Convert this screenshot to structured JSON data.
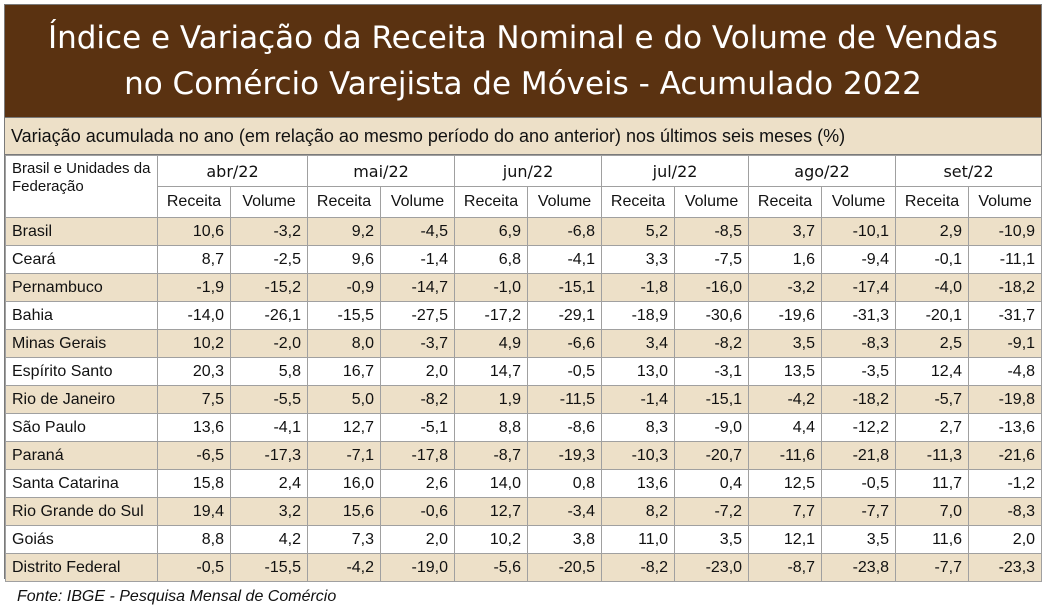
{
  "title": {
    "line1": "Índice e Variação da Receita Nominal e do Volume de Vendas",
    "line2": "no Comércio Varejista de Móveis - Acumulado 2022"
  },
  "subtitle": "Variação acumulada no ano (em relação ao mesmo período do ano anterior) nos últimos seis meses (%)",
  "table": {
    "corner_label": "Brasil e Unidades da Federação",
    "months": [
      "abr/22",
      "mai/22",
      "jun/22",
      "jul/22",
      "ago/22",
      "set/22"
    ],
    "sub_headers": [
      "Receita",
      "Volume"
    ],
    "rows": [
      {
        "name": "Brasil",
        "values": [
          "10,6",
          "-3,2",
          "9,2",
          "-4,5",
          "6,9",
          "-6,8",
          "5,2",
          "-8,5",
          "3,7",
          "-10,1",
          "2,9",
          "-10,9"
        ]
      },
      {
        "name": "Ceará",
        "values": [
          "8,7",
          "-2,5",
          "9,6",
          "-1,4",
          "6,8",
          "-4,1",
          "3,3",
          "-7,5",
          "1,6",
          "-9,4",
          "-0,1",
          "-11,1"
        ]
      },
      {
        "name": "Pernambuco",
        "values": [
          "-1,9",
          "-15,2",
          "-0,9",
          "-14,7",
          "-1,0",
          "-15,1",
          "-1,8",
          "-16,0",
          "-3,2",
          "-17,4",
          "-4,0",
          "-18,2"
        ]
      },
      {
        "name": "Bahia",
        "values": [
          "-14,0",
          "-26,1",
          "-15,5",
          "-27,5",
          "-17,2",
          "-29,1",
          "-18,9",
          "-30,6",
          "-19,6",
          "-31,3",
          "-20,1",
          "-31,7"
        ]
      },
      {
        "name": "Minas Gerais",
        "values": [
          "10,2",
          "-2,0",
          "8,0",
          "-3,7",
          "4,9",
          "-6,6",
          "3,4",
          "-8,2",
          "3,5",
          "-8,3",
          "2,5",
          "-9,1"
        ]
      },
      {
        "name": "Espírito Santo",
        "values": [
          "20,3",
          "5,8",
          "16,7",
          "2,0",
          "14,7",
          "-0,5",
          "13,0",
          "-3,1",
          "13,5",
          "-3,5",
          "12,4",
          "-4,8"
        ]
      },
      {
        "name": "Rio de Janeiro",
        "values": [
          "7,5",
          "-5,5",
          "5,0",
          "-8,2",
          "1,9",
          "-11,5",
          "-1,4",
          "-15,1",
          "-4,2",
          "-18,2",
          "-5,7",
          "-19,8"
        ]
      },
      {
        "name": "São Paulo",
        "values": [
          "13,6",
          "-4,1",
          "12,7",
          "-5,1",
          "8,8",
          "-8,6",
          "8,3",
          "-9,0",
          "4,4",
          "-12,2",
          "2,7",
          "-13,6"
        ]
      },
      {
        "name": "Paraná",
        "values": [
          "-6,5",
          "-17,3",
          "-7,1",
          "-17,8",
          "-8,7",
          "-19,3",
          "-10,3",
          "-20,7",
          "-11,6",
          "-21,8",
          "-11,3",
          "-21,6"
        ]
      },
      {
        "name": "Santa Catarina",
        "values": [
          "15,8",
          "2,4",
          "16,0",
          "2,6",
          "14,0",
          "0,8",
          "13,6",
          "0,4",
          "12,5",
          "-0,5",
          "11,7",
          "-1,2"
        ]
      },
      {
        "name": "Rio Grande do Sul",
        "values": [
          "19,4",
          "3,2",
          "15,6",
          "-0,6",
          "12,7",
          "-3,4",
          "8,2",
          "-7,2",
          "7,7",
          "-7,7",
          "7,0",
          "-8,3"
        ]
      },
      {
        "name": "Goiás",
        "values": [
          "8,8",
          "4,2",
          "7,3",
          "2,0",
          "10,2",
          "3,8",
          "11,0",
          "3,5",
          "12,1",
          "3,5",
          "11,6",
          "2,0"
        ]
      },
      {
        "name": "Distrito Federal",
        "values": [
          "-0,5",
          "-15,5",
          "-4,2",
          "-19,0",
          "-5,6",
          "-20,5",
          "-8,2",
          "-23,0",
          "-8,7",
          "-23,8",
          "-7,7",
          "-23,3"
        ]
      }
    ]
  },
  "source": "Fonte: IBGE - Pesquisa Mensal de Comércio",
  "colors": {
    "title_background": "#5a3211",
    "title_text": "#ffffff",
    "shade_background": "#ede0c8",
    "border": "#a0a0a0"
  }
}
